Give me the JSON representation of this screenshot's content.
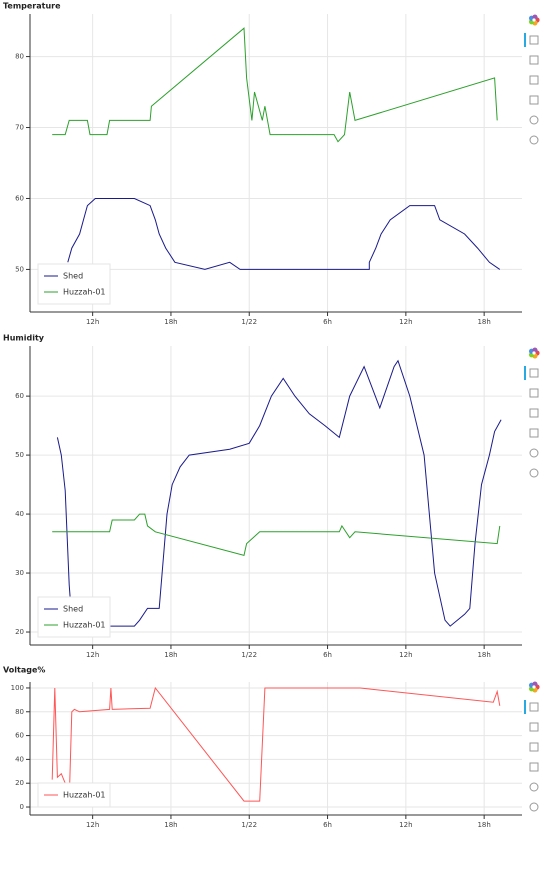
{
  "chart_data": [
    {
      "type": "line",
      "title": "Temperature",
      "xlim": [
        7.2,
        44.9
      ],
      "ylim": [
        44,
        86
      ],
      "xticks": [
        {
          "value": 12,
          "label": "12h"
        },
        {
          "value": 18,
          "label": "18h"
        },
        {
          "value": 24,
          "label": "1/22"
        },
        {
          "value": 30,
          "label": "6h"
        },
        {
          "value": 36,
          "label": "12h"
        },
        {
          "value": 42,
          "label": "18h"
        }
      ],
      "yticks": [
        50,
        60,
        70,
        80
      ],
      "grid": true,
      "legend": "bottom-left",
      "series": [
        {
          "name": "Shed",
          "color": "#1a1a8c",
          "x": [
            10.1,
            10.4,
            11.0,
            11.3,
            11.6,
            12.2,
            15.2,
            16.4,
            16.8,
            17.1,
            17.6,
            18.3,
            20.6,
            22.5,
            23.3,
            33.2,
            33.2,
            33.7,
            34.1,
            34.8,
            36.3,
            38.2,
            38.6,
            40.5,
            41.5,
            42.4,
            43.2
          ],
          "values": [
            51,
            53,
            55,
            57,
            59,
            60,
            60,
            59,
            57,
            55,
            53,
            51,
            50,
            51,
            50,
            50,
            51,
            53,
            55,
            57,
            59,
            59,
            57,
            55,
            53,
            51,
            50
          ]
        },
        {
          "name": "Huzzah-01",
          "color": "#2ca02c",
          "x": [
            8.9,
            9.9,
            10.2,
            11.6,
            11.8,
            13.1,
            13.3,
            16.4,
            16.5,
            23.6,
            23.8,
            24.2,
            24.4,
            25.0,
            25.2,
            25.6,
            30.5,
            30.8,
            31.3,
            31.7,
            32.1,
            42.8,
            43.0
          ],
          "values": [
            69,
            69,
            71,
            71,
            69,
            69,
            71,
            71,
            73,
            84,
            77,
            71,
            75,
            71,
            73,
            69,
            69,
            68,
            69,
            75,
            71,
            77,
            71
          ]
        }
      ]
    },
    {
      "type": "line",
      "title": "Humidity",
      "xlim": [
        7.2,
        44.9
      ],
      "ylim": [
        17.8,
        68.5
      ],
      "xticks": [
        {
          "value": 12,
          "label": "12h"
        },
        {
          "value": 18,
          "label": "18h"
        },
        {
          "value": 24,
          "label": "1/22"
        },
        {
          "value": 30,
          "label": "6h"
        },
        {
          "value": 36,
          "label": "12h"
        },
        {
          "value": 42,
          "label": "18h"
        }
      ],
      "yticks": [
        20,
        30,
        40,
        50,
        60
      ],
      "grid": true,
      "legend": "bottom-left",
      "series": [
        {
          "name": "Shed",
          "color": "#1a1a8c",
          "x": [
            9.3,
            9.6,
            9.9,
            10.2,
            10.4,
            10.6,
            15.2,
            15.6,
            16.2,
            17.1,
            17.7,
            18.1,
            18.7,
            19.4,
            22.5,
            24.0,
            24.8,
            25.7,
            26.6,
            27.5,
            28.6,
            29.8,
            30.9,
            31.7,
            32.8,
            34.0,
            35.1,
            35.4,
            36.3,
            37.4,
            38.2,
            39.0,
            39.4,
            40.5,
            40.9,
            41.3,
            41.8,
            42.4,
            42.8,
            43.3
          ],
          "values": [
            53,
            50,
            44,
            28,
            22,
            21,
            21,
            22,
            24,
            24,
            40,
            45,
            48,
            50,
            51,
            52,
            55,
            60,
            63,
            60,
            57,
            55,
            53,
            60,
            65,
            58,
            65,
            66,
            60,
            50,
            30,
            22,
            21,
            23,
            24,
            35,
            45,
            50,
            54,
            56
          ]
        },
        {
          "name": "Huzzah-01",
          "color": "#2ca02c",
          "x": [
            8.9,
            13.3,
            13.5,
            15.2,
            15.6,
            16.0,
            16.2,
            16.8,
            23.6,
            23.8,
            24.8,
            30.9,
            31.1,
            31.7,
            32.1,
            43.0,
            43.2
          ],
          "values": [
            37,
            37,
            39,
            39,
            40,
            40,
            38,
            37,
            33,
            35,
            37,
            37,
            38,
            36,
            37,
            35,
            38
          ]
        }
      ]
    },
    {
      "type": "line",
      "title": "Voltage%",
      "xlim": [
        7.2,
        44.9
      ],
      "ylim": [
        -6.7,
        105
      ],
      "xticks": [
        {
          "value": 12,
          "label": "12h"
        },
        {
          "value": 18,
          "label": "18h"
        },
        {
          "value": 24,
          "label": "1/22"
        },
        {
          "value": 30,
          "label": "6h"
        },
        {
          "value": 36,
          "label": "12h"
        },
        {
          "value": 42,
          "label": "18h"
        }
      ],
      "yticks": [
        0,
        20,
        40,
        60,
        80,
        100
      ],
      "grid": true,
      "legend": "bottom-left",
      "series": [
        {
          "name": "Huzzah-01",
          "color": "#ff5555",
          "x": [
            8.9,
            9.1,
            9.3,
            9.6,
            9.9,
            10.2,
            10.4,
            10.6,
            11.0,
            13.3,
            13.4,
            13.5,
            16.4,
            16.8,
            23.6,
            24.8,
            25.2,
            32.5,
            42.7,
            43.0,
            43.2
          ],
          "values": [
            23,
            100,
            25,
            28,
            20,
            5,
            80,
            82,
            80,
            82,
            100,
            82,
            83,
            100,
            5,
            5,
            100,
            100,
            88,
            97,
            85
          ]
        }
      ]
    }
  ]
}
